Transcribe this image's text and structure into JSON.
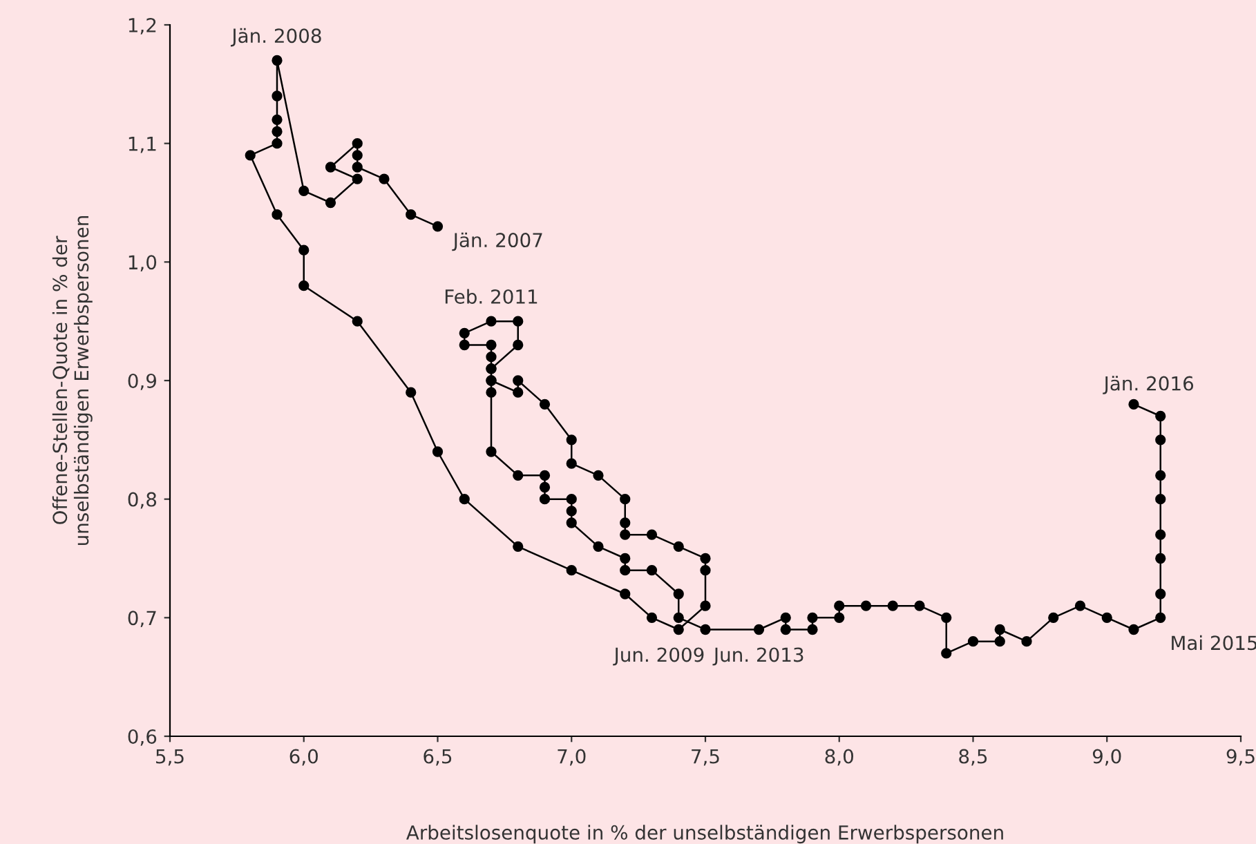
{
  "chart_data": {
    "type": "line",
    "xlabel": "Arbeitslosenquote in % der unselbständigen Erwerbspersonen",
    "ylabel": "Offene-Stellen-Quote in % der\nunselbständigen Erwerbspersonen",
    "x": [
      6.5,
      6.4,
      6.3,
      6.2,
      6.2,
      6.2,
      6.1,
      6.2,
      6.1,
      6.0,
      5.9,
      5.9,
      5.9,
      5.9,
      5.9,
      5.8,
      5.9,
      6.0,
      6.0,
      6.2,
      6.4,
      6.5,
      6.6,
      6.8,
      7.0,
      7.2,
      7.3,
      7.4,
      7.5,
      7.5,
      7.5,
      7.4,
      7.3,
      7.2,
      7.2,
      7.2,
      7.1,
      7.0,
      7.0,
      6.9,
      6.8,
      6.8,
      6.7,
      6.7,
      6.8,
      6.8,
      6.7,
      6.6,
      6.6,
      6.7,
      6.7,
      6.7,
      6.7,
      6.7,
      6.7,
      6.8,
      6.9,
      6.9,
      6.9,
      7.0,
      7.0,
      7.0,
      7.1,
      7.2,
      7.2,
      7.3,
      7.4,
      7.4,
      7.5,
      7.7,
      7.8,
      7.8,
      7.9,
      7.9,
      8.0,
      8.0,
      8.1,
      8.2,
      8.3,
      8.4,
      8.4,
      8.5,
      8.6,
      8.6,
      8.7,
      8.8,
      8.9,
      9.0,
      9.1,
      9.2,
      9.2,
      9.2,
      9.2,
      9.2,
      9.2,
      9.2,
      9.2,
      9.1
    ],
    "values": [
      1.03,
      1.04,
      1.07,
      1.08,
      1.09,
      1.1,
      1.08,
      1.07,
      1.05,
      1.06,
      1.17,
      1.14,
      1.12,
      1.11,
      1.1,
      1.09,
      1.04,
      1.01,
      0.98,
      0.95,
      0.89,
      0.84,
      0.8,
      0.76,
      0.74,
      0.72,
      0.7,
      0.69,
      0.71,
      0.74,
      0.75,
      0.76,
      0.77,
      0.77,
      0.78,
      0.8,
      0.82,
      0.83,
      0.85,
      0.88,
      0.9,
      0.89,
      0.9,
      0.91,
      0.93,
      0.95,
      0.95,
      0.94,
      0.93,
      0.93,
      0.92,
      0.91,
      0.9,
      0.89,
      0.84,
      0.82,
      0.82,
      0.81,
      0.8,
      0.8,
      0.79,
      0.78,
      0.76,
      0.75,
      0.74,
      0.74,
      0.72,
      0.7,
      0.69,
      0.69,
      0.7,
      0.69,
      0.69,
      0.7,
      0.7,
      0.71,
      0.71,
      0.71,
      0.71,
      0.7,
      0.67,
      0.68,
      0.68,
      0.69,
      0.68,
      0.7,
      0.71,
      0.7,
      0.69,
      0.7,
      0.72,
      0.75,
      0.77,
      0.8,
      0.82,
      0.85,
      0.87,
      0.88
    ],
    "color": "#000000",
    "marker": "circle",
    "line_style": "solid",
    "grid": false,
    "legend": false,
    "xlim": [
      5.5,
      9.5
    ],
    "xticks": [
      {
        "value": 5.5,
        "label": "5,5"
      },
      {
        "value": 6.0,
        "label": "6,0"
      },
      {
        "value": 6.5,
        "label": "6,5"
      },
      {
        "value": 7.0,
        "label": "7,0"
      },
      {
        "value": 7.5,
        "label": "7,5"
      },
      {
        "value": 8.0,
        "label": "8,0"
      },
      {
        "value": 8.5,
        "label": "8,5"
      },
      {
        "value": 9.0,
        "label": "9,0"
      },
      {
        "value": 9.5,
        "label": "9,5"
      }
    ],
    "ylim": [
      0.6,
      1.2
    ],
    "yticks": [
      {
        "value": 0.6,
        "label": "0,6"
      },
      {
        "value": 0.7,
        "label": "0,7"
      },
      {
        "value": 0.8,
        "label": "0,8"
      },
      {
        "value": 0.9,
        "label": "0,9"
      },
      {
        "value": 1.0,
        "label": "1,0"
      },
      {
        "value": 1.1,
        "label": "1,1"
      },
      {
        "value": 1.2,
        "label": "1,2"
      }
    ],
    "annotations": [
      {
        "text": "Jän. 2007",
        "x": 6.5,
        "y": 1.03
      },
      {
        "text": "Jän. 2008",
        "x": 5.9,
        "y": 1.17
      },
      {
        "text": "Feb. 2011",
        "x": 6.7,
        "y": 0.95
      },
      {
        "text": "Jun. 2009",
        "x": 7.4,
        "y": 0.69
      },
      {
        "text": "Jun. 2013",
        "x": 7.5,
        "y": 0.69
      },
      {
        "text": "Mai 2015",
        "x": 9.2,
        "y": 0.7
      },
      {
        "text": "Jän. 2016",
        "x": 9.1,
        "y": 0.88
      }
    ]
  }
}
